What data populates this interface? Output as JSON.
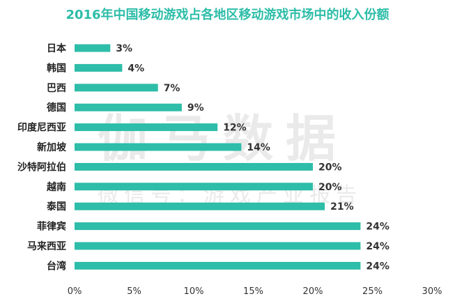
{
  "chart_data": {
    "type": "bar",
    "orientation": "horizontal",
    "title": "2016年中国移动游戏占各地区移动游戏市场中的收入份额",
    "categories": [
      "日本",
      "韩国",
      "巴西",
      "德国",
      "印度尼西亚",
      "新加坡",
      "沙特阿拉伯",
      "越南",
      "泰国",
      "菲律宾",
      "马来西亚",
      "台湾"
    ],
    "values": [
      3,
      4,
      7,
      9,
      12,
      14,
      20,
      20,
      21,
      24,
      24,
      24
    ],
    "value_labels": [
      "3%",
      "4%",
      "7%",
      "9%",
      "12%",
      "14%",
      "20%",
      "20%",
      "21%",
      "24%",
      "24%",
      "24%"
    ],
    "x_ticks": [
      "0%",
      "5%",
      "10%",
      "15%",
      "20%",
      "25%",
      "30%"
    ],
    "xlim": [
      0,
      30
    ],
    "unit": "%",
    "grid": false,
    "legend": "none",
    "bar_color": "#2dbda8"
  },
  "watermark": {
    "main": "伽马数据",
    "sub": "微信号：游戏产业报告"
  }
}
